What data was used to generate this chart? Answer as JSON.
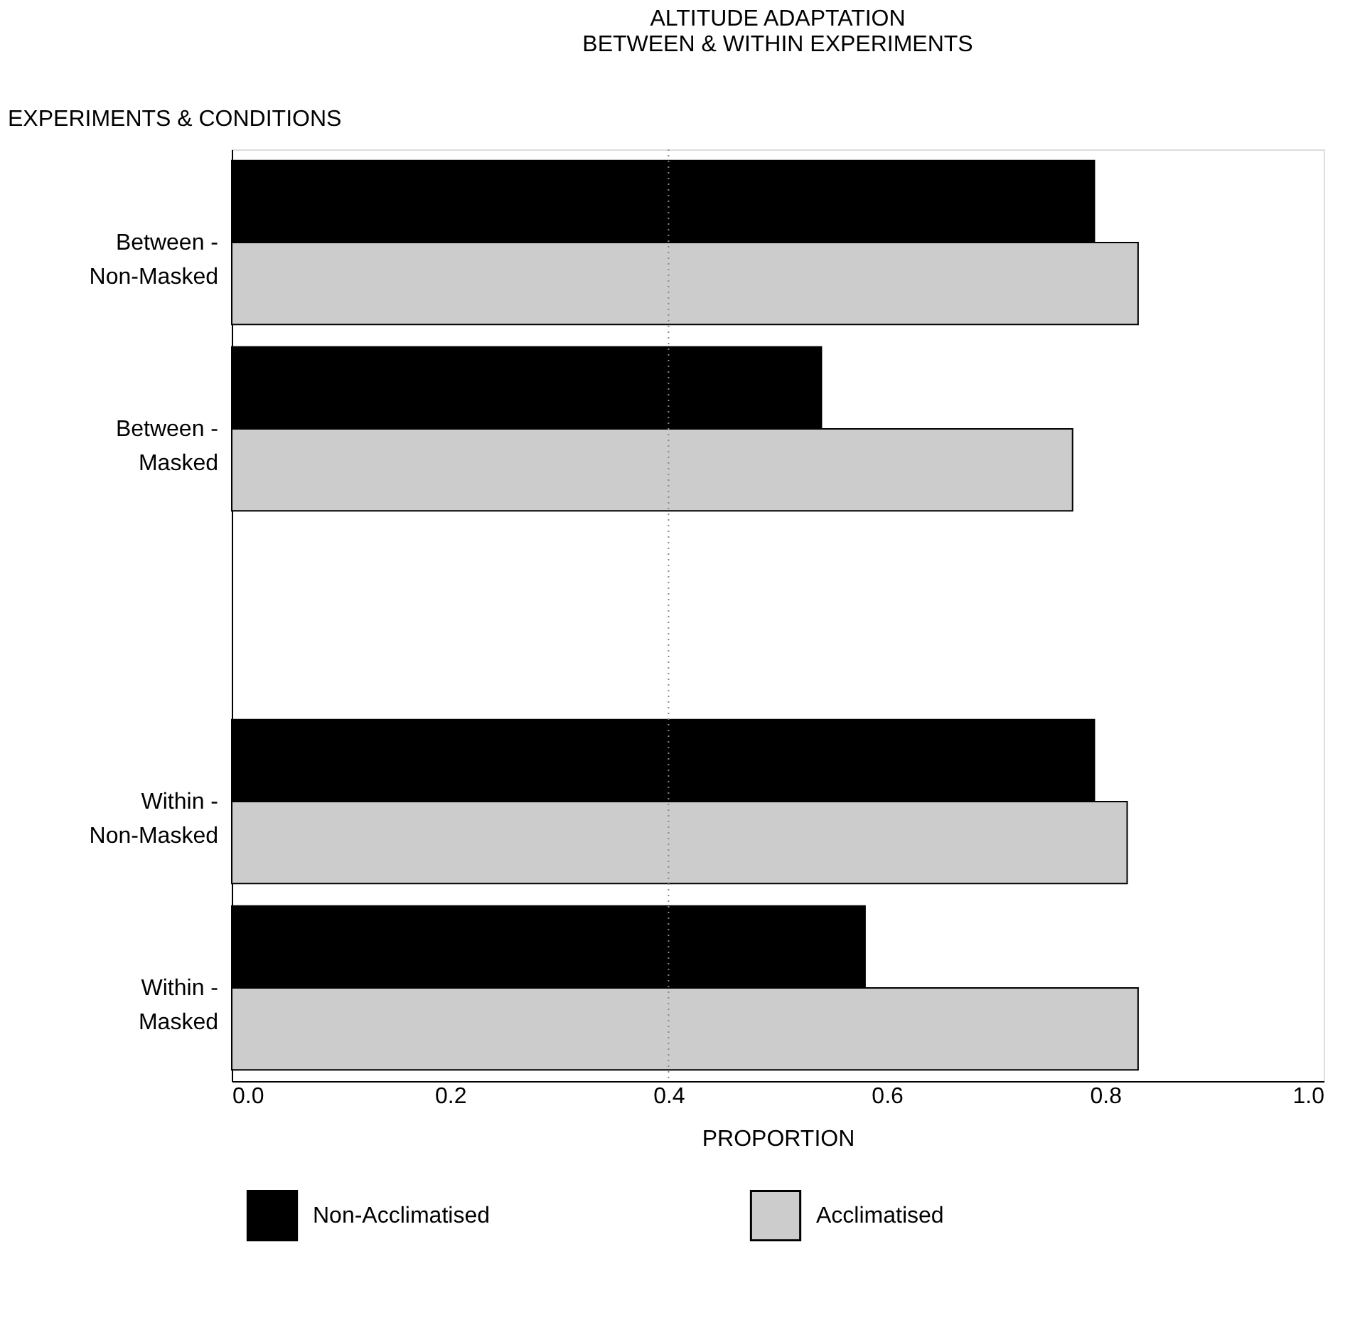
{
  "chart_data": {
    "type": "bar",
    "orientation": "horizontal",
    "title": [
      "ALTITUDE ADAPTATION",
      "BETWEEN & WITHIN EXPERIMENTS"
    ],
    "xlabel": "PROPORTION",
    "ylabel": "EXPERIMENTS & CONDITIONS",
    "categories": [
      "Between -\nNon-Masked",
      "Between -\nMasked",
      null,
      "Within -\nNon-Masked",
      "Within -\nMasked"
    ],
    "series": [
      {
        "name": "Non-Acclimatised",
        "color": "#000000",
        "values": [
          0.79,
          0.54,
          null,
          0.79,
          0.58
        ]
      },
      {
        "name": "Acclimatised",
        "color": "#cccccc",
        "values": [
          0.83,
          0.77,
          null,
          0.82,
          0.83
        ]
      }
    ],
    "xlim": [
      0,
      1
    ],
    "xticks": [
      {
        "value": 0,
        "label": "0.0"
      },
      0.2,
      0.4,
      0.6,
      0.8,
      {
        "value": 1,
        "label": "1.0"
      }
    ],
    "ref_lines": [
      {
        "axis": "x",
        "value": 0.4,
        "color": "#888888",
        "line_style": "dotted"
      }
    ],
    "grid": false,
    "legend": "bottom"
  }
}
